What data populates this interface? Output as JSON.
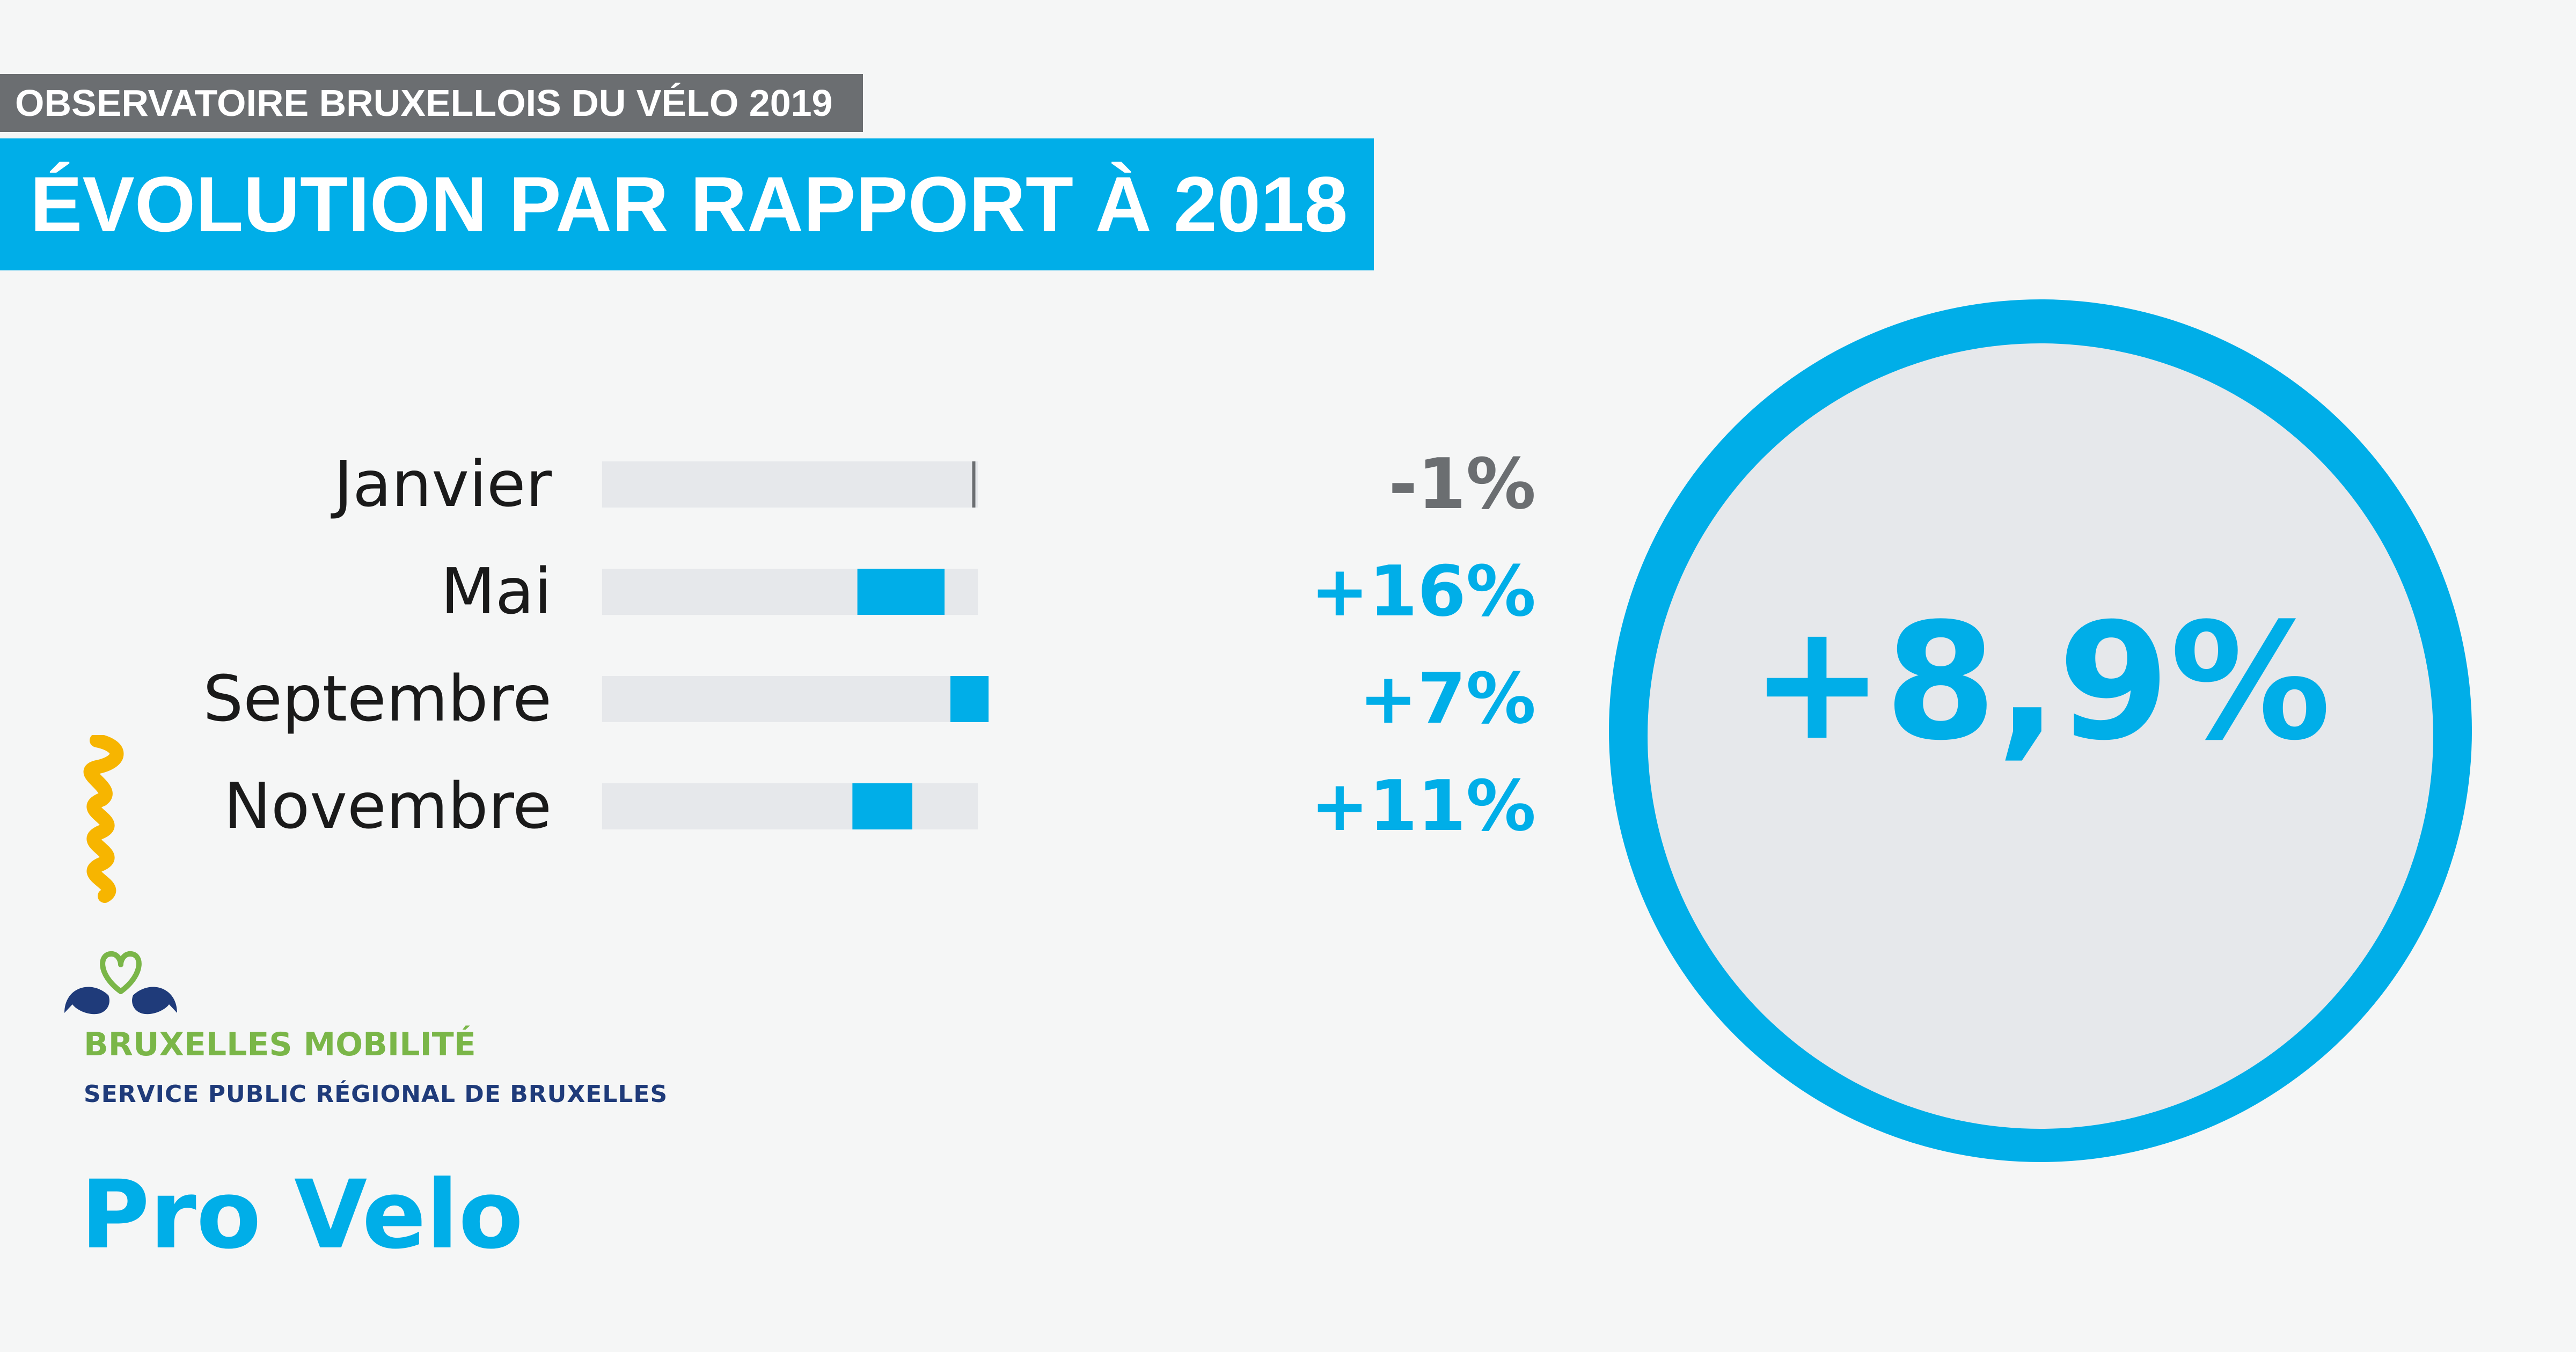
{
  "header": {
    "kicker": "OBSERVATOIRE BRUXELLOIS DU VÉLO 2019",
    "title": "ÉVOLUTION PAR RAPPORT À 2018"
  },
  "chart_data": {
    "type": "bar",
    "title": "ÉVOLUTION PAR RAPPORT À 2018",
    "categories": [
      "Janvier",
      "Mai",
      "Septembre",
      "Novembre"
    ],
    "values": [
      -1,
      16,
      7,
      11
    ],
    "labels": [
      "-1%",
      "+16%",
      "+7%",
      "+11%"
    ],
    "label_colors": [
      "#6b6e71",
      "#00aee8",
      "#00aee8",
      "#00aee8"
    ],
    "baselines": [
      100,
      100,
      100,
      100
    ],
    "xlabel": "",
    "ylabel": "",
    "summary": {
      "label": "+8,9%"
    }
  },
  "branding": {
    "bruxelles_mobilite": "BRUXELLES MOBILITÉ",
    "bruxelles_mobilite_sub": "SERVICE PUBLIC RÉGIONAL DE BRUXELLES",
    "pro_velo": "Pro Velo"
  },
  "colors": {
    "accent": "#00aee8",
    "track": "#e6e8eb",
    "negative": "#6b6e71",
    "yellow": "#f7b500",
    "navy": "#1f3b7a",
    "green": "#7ab648"
  }
}
